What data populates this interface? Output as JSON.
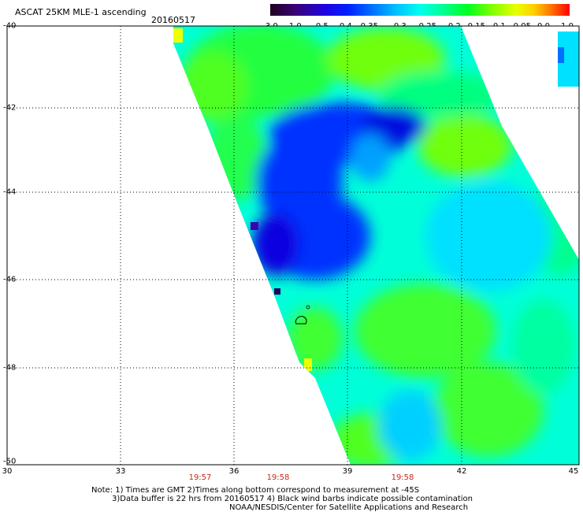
{
  "header": {
    "title": "ASCAT 25KM MLE-1 ascending",
    "date": "20160517"
  },
  "colorbar": {
    "tick_labels": [
      "-3.0",
      "-1.0",
      "-0.5",
      "-0.4",
      "-0.35",
      "-0.3",
      "-0.25",
      "-0.2",
      "-0.15",
      "-0.1",
      "-0.05",
      "0.0",
      "1.0"
    ],
    "colors": [
      "#2a0030",
      "#4b0082",
      "#3a00c8",
      "#0000ff",
      "#0050ff",
      "#00a0ff",
      "#00e8ff",
      "#00ffb0",
      "#00ff40",
      "#60ff00",
      "#c8ff00",
      "#ffff00",
      "#ffb000",
      "#ff6000",
      "#ff0000"
    ]
  },
  "map": {
    "x_tick_labels": [
      "30",
      "33",
      "36",
      "39",
      "42",
      "45"
    ],
    "y_tick_labels": [
      "-40",
      "-42",
      "-44",
      "-46",
      "-48",
      "-50"
    ],
    "time_labels": [
      "19:57",
      "19:58",
      "19:58"
    ],
    "time_color": "#c8281e",
    "background_swath_color": "#00ffff"
  },
  "notes": {
    "line1": "Note: 1) Times are GMT 2)Times along bottom correspond to measurement at -45S",
    "line2": "3)Data buffer is 22 hrs from 20160517 4) Black wind barbs indicate possible contamination",
    "line3": "NOAA/NESDIS/Center for Satellite Applications and Research"
  }
}
